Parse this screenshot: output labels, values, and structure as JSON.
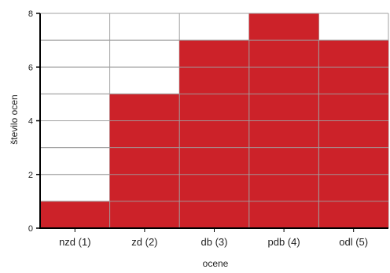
{
  "chart_data": {
    "type": "bar",
    "categories": [
      "nzd (1)",
      "zd (2)",
      "db (3)",
      "pdb (4)",
      "odl (5)"
    ],
    "values": [
      1,
      5,
      7,
      8,
      7
    ],
    "xlabel": "ocene",
    "ylabel": "število ocen",
    "ylim": [
      0,
      8
    ],
    "yticks": [
      0,
      2,
      4,
      6,
      8
    ],
    "grid": true,
    "bar_color": "#cc2229",
    "grid_color": "#a0a0a0"
  }
}
